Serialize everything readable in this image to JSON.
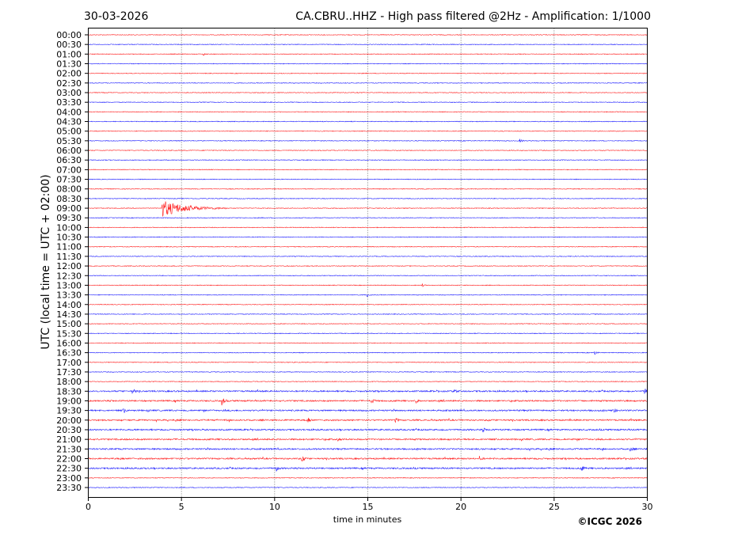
{
  "chart_data": {
    "type": "line",
    "title_left": "30-03-2026",
    "title": "CA.CBRU..HHZ - High pass filtered @2Hz - Amplification: 1/1000",
    "xlabel": "time in minutes",
    "ylabel": "UTC (local time = UTC + 02:00)",
    "xlim": [
      0,
      30
    ],
    "x_ticks": [
      "0",
      "5",
      "10",
      "15",
      "20",
      "25",
      "30"
    ],
    "grid": "vertical dotted at 5-minute intervals",
    "row_colors": [
      "#ff0000",
      "#0000ff"
    ],
    "rows": [
      "00:00",
      "00:30",
      "01:00",
      "01:30",
      "02:00",
      "02:30",
      "03:00",
      "03:30",
      "04:00",
      "04:30",
      "05:00",
      "05:30",
      "06:00",
      "06:30",
      "07:00",
      "07:30",
      "08:00",
      "08:30",
      "09:00",
      "09:30",
      "10:00",
      "10:30",
      "11:00",
      "11:30",
      "12:00",
      "12:30",
      "13:00",
      "13:30",
      "14:00",
      "14:30",
      "15:00",
      "15:30",
      "16:00",
      "16:30",
      "17:00",
      "17:30",
      "18:00",
      "18:30",
      "19:00",
      "19:30",
      "20:00",
      "20:30",
      "21:00",
      "21:30",
      "22:00",
      "22:30",
      "23:00",
      "23:30"
    ],
    "events": [
      {
        "row": "01:00",
        "minute": 6.2,
        "amplitude": 1.5
      },
      {
        "row": "05:30",
        "minute": 23.2,
        "amplitude": 2
      },
      {
        "row": "09:00",
        "minute": 4.0,
        "amplitude": 10,
        "duration": 3.5
      },
      {
        "row": "13:00",
        "minute": 17.9,
        "amplitude": 2.5
      },
      {
        "row": "13:30",
        "minute": 15.0,
        "amplitude": 2
      },
      {
        "row": "16:30",
        "minute": 27.2,
        "amplitude": 2
      },
      {
        "row": "18:30",
        "minute": 2.4,
        "amplitude": 3
      },
      {
        "row": "18:30",
        "minute": 19.6,
        "amplitude": 3
      },
      {
        "row": "18:30",
        "minute": 29.9,
        "amplitude": 3
      },
      {
        "row": "19:00",
        "minute": 7.2,
        "amplitude": 5
      },
      {
        "row": "19:00",
        "minute": 15.2,
        "amplitude": 4
      },
      {
        "row": "19:00",
        "minute": 17.6,
        "amplitude": 2.5
      },
      {
        "row": "19:30",
        "minute": 1.9,
        "amplitude": 3.5
      },
      {
        "row": "19:30",
        "minute": 28.2,
        "amplitude": 3
      },
      {
        "row": "20:00",
        "minute": 11.8,
        "amplitude": 3
      },
      {
        "row": "20:00",
        "minute": 16.5,
        "amplitude": 3
      },
      {
        "row": "20:30",
        "minute": 21.2,
        "amplitude": 2
      },
      {
        "row": "21:00",
        "minute": 13.4,
        "amplitude": 3
      },
      {
        "row": "21:30",
        "minute": 29.1,
        "amplitude": 3
      },
      {
        "row": "22:00",
        "minute": 11.5,
        "amplitude": 4
      },
      {
        "row": "22:00",
        "minute": 21.0,
        "amplitude": 2.5
      },
      {
        "row": "22:30",
        "minute": 10.1,
        "amplitude": 3
      },
      {
        "row": "22:30",
        "minute": 26.5,
        "amplitude": 3
      }
    ],
    "noisy_rows": [
      "18:30",
      "19:00",
      "19:30",
      "20:00",
      "20:30",
      "21:00",
      "21:30",
      "22:00",
      "22:30"
    ]
  },
  "footer": {
    "copyright": "©ICGC 2026"
  }
}
